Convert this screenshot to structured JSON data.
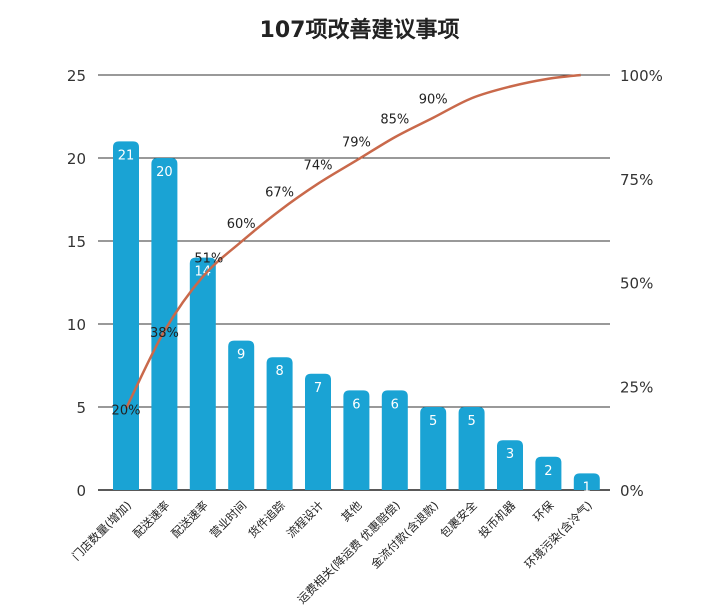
{
  "chart_data": {
    "type": "bar",
    "title": "107项改善建议事项",
    "categories": [
      "门店数量(增加)",
      "配送速率",
      "配送速率",
      "营业时间",
      "货件追踪",
      "流程设计",
      "其他",
      "运费相关(降运费 优惠赔偿)",
      "金流付款(含退款)",
      "包裹安全",
      "投币机器",
      "环保",
      "环境污染(含冷气)"
    ],
    "values": [
      21,
      20,
      14,
      9,
      8,
      7,
      6,
      6,
      5,
      5,
      3,
      2,
      1
    ],
    "cumulative_percent": [
      19.6,
      38.3,
      51.4,
      59.8,
      67.3,
      73.8,
      79.4,
      85.0,
      89.7,
      94.4,
      97.2,
      99.1,
      100
    ],
    "cumulative_labels": [
      "20%",
      "38%",
      "51%",
      "60%",
      "67%",
      "74%",
      "79%",
      "85%",
      "90%"
    ],
    "ylim": [
      0,
      25
    ],
    "yticks": [
      "0",
      "5",
      "10",
      "15",
      "20",
      "25"
    ],
    "y2lim": [
      0,
      100
    ],
    "y2ticks": [
      "0%",
      "25%",
      "50%",
      "75%",
      "100%"
    ],
    "grid": true,
    "colors": {
      "bar": "#1aa3d4",
      "line": "#c9694b",
      "bar_label": "#ffffff"
    }
  }
}
